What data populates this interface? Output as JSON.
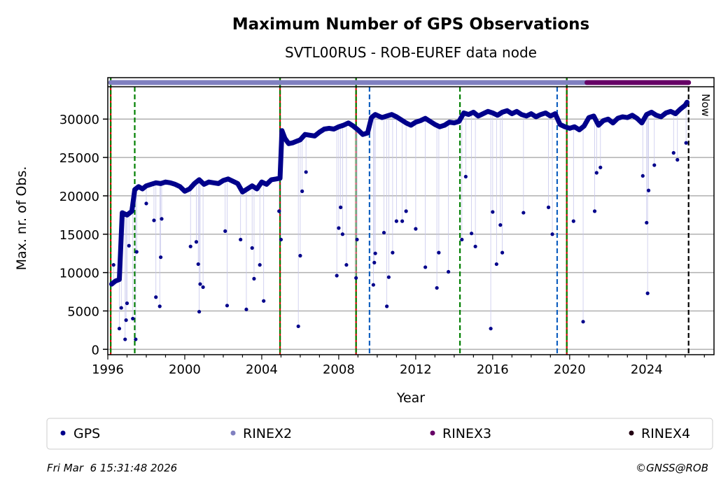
{
  "chart_data": {
    "type": "scatter",
    "title": "Maximum Number of GPS Observations",
    "subtitle": "SVTL00RUS - ROB-EUREF data node",
    "xlabel": "Year",
    "ylabel": "Max. nr. of Obs.",
    "xlim": [
      1996,
      2027.5
    ],
    "ylim": [
      -700,
      35400
    ],
    "xticks": [
      "1996",
      "2000",
      "2004",
      "2008",
      "2012",
      "2016",
      "2020",
      "2024"
    ],
    "yticks": [
      "0",
      "5000",
      "10000",
      "15000",
      "20000",
      "25000",
      "30000"
    ],
    "grid": "horizontal",
    "now_label": "Now",
    "now_year": 2026.18,
    "colors": {
      "gps": "#00008b",
      "rinex2": "#8080c0",
      "rinex3": "#660066",
      "rinex4": "#220011"
    },
    "rinex_periods": [
      {
        "name": "RINEX2",
        "from": 1996.15,
        "to": 2020.9
      },
      {
        "name": "RINEX3",
        "from": 2020.9,
        "to": 2026.18
      }
    ],
    "event_lines": [
      {
        "year": 1996.15,
        "style": "red-green"
      },
      {
        "year": 1997.4,
        "style": "green"
      },
      {
        "year": 2004.95,
        "style": "red-green"
      },
      {
        "year": 2008.9,
        "style": "red-green"
      },
      {
        "year": 2009.6,
        "style": "blue"
      },
      {
        "year": 2014.3,
        "style": "green"
      },
      {
        "year": 2019.35,
        "style": "blue"
      },
      {
        "year": 2019.85,
        "style": "red-green"
      }
    ],
    "series": [
      {
        "name": "GPS",
        "points": [
          [
            1996.2,
            8500
          ],
          [
            1996.4,
            8900
          ],
          [
            1996.6,
            9100
          ],
          [
            1996.75,
            17800
          ],
          [
            1997.0,
            17500
          ],
          [
            1997.25,
            18000
          ],
          [
            1997.4,
            20800
          ],
          [
            1997.6,
            21200
          ],
          [
            1997.8,
            20900
          ],
          [
            1998.0,
            21300
          ],
          [
            1998.25,
            21500
          ],
          [
            1998.5,
            21700
          ],
          [
            1998.75,
            21600
          ],
          [
            1999.0,
            21800
          ],
          [
            1999.25,
            21700
          ],
          [
            1999.5,
            21500
          ],
          [
            1999.75,
            21200
          ],
          [
            2000.0,
            20600
          ],
          [
            2000.25,
            20900
          ],
          [
            2000.5,
            21600
          ],
          [
            2000.75,
            22100
          ],
          [
            2001.0,
            21500
          ],
          [
            2001.25,
            21800
          ],
          [
            2001.5,
            21700
          ],
          [
            2001.75,
            21600
          ],
          [
            2002.0,
            22000
          ],
          [
            2002.25,
            22200
          ],
          [
            2002.5,
            21900
          ],
          [
            2002.75,
            21600
          ],
          [
            2003.0,
            20500
          ],
          [
            2003.25,
            20900
          ],
          [
            2003.5,
            21300
          ],
          [
            2003.75,
            20900
          ],
          [
            2004.0,
            21800
          ],
          [
            2004.25,
            21500
          ],
          [
            2004.5,
            22100
          ],
          [
            2004.75,
            22200
          ],
          [
            2004.95,
            22300
          ],
          [
            2005.05,
            28500
          ],
          [
            2005.2,
            27500
          ],
          [
            2005.4,
            26800
          ],
          [
            2005.6,
            26900
          ],
          [
            2005.8,
            27100
          ],
          [
            2006.0,
            27300
          ],
          [
            2006.25,
            28000
          ],
          [
            2006.5,
            27900
          ],
          [
            2006.75,
            27800
          ],
          [
            2007.0,
            28300
          ],
          [
            2007.25,
            28700
          ],
          [
            2007.5,
            28800
          ],
          [
            2007.75,
            28700
          ],
          [
            2008.0,
            29000
          ],
          [
            2008.25,
            29200
          ],
          [
            2008.5,
            29500
          ],
          [
            2008.75,
            29100
          ],
          [
            2009.0,
            28600
          ],
          [
            2009.25,
            28000
          ],
          [
            2009.5,
            28200
          ],
          [
            2009.7,
            30200
          ],
          [
            2009.9,
            30600
          ],
          [
            2010.25,
            30200
          ],
          [
            2010.5,
            30400
          ],
          [
            2010.75,
            30600
          ],
          [
            2011.0,
            30300
          ],
          [
            2011.25,
            29900
          ],
          [
            2011.5,
            29500
          ],
          [
            2011.75,
            29200
          ],
          [
            2012.0,
            29600
          ],
          [
            2012.25,
            29800
          ],
          [
            2012.5,
            30100
          ],
          [
            2012.75,
            29700
          ],
          [
            2013.0,
            29300
          ],
          [
            2013.25,
            29000
          ],
          [
            2013.5,
            29200
          ],
          [
            2013.75,
            29600
          ],
          [
            2014.0,
            29500
          ],
          [
            2014.25,
            29700
          ],
          [
            2014.5,
            30800
          ],
          [
            2014.75,
            30600
          ],
          [
            2015.0,
            30900
          ],
          [
            2015.25,
            30400
          ],
          [
            2015.5,
            30700
          ],
          [
            2015.75,
            31000
          ],
          [
            2016.0,
            30800
          ],
          [
            2016.25,
            30500
          ],
          [
            2016.5,
            30900
          ],
          [
            2016.75,
            31100
          ],
          [
            2017.0,
            30700
          ],
          [
            2017.25,
            31000
          ],
          [
            2017.5,
            30600
          ],
          [
            2017.75,
            30400
          ],
          [
            2018.0,
            30700
          ],
          [
            2018.25,
            30300
          ],
          [
            2018.5,
            30600
          ],
          [
            2018.75,
            30800
          ],
          [
            2019.0,
            30400
          ],
          [
            2019.25,
            30700
          ],
          [
            2019.5,
            29300
          ],
          [
            2019.75,
            29000
          ],
          [
            2020.0,
            28800
          ],
          [
            2020.25,
            29000
          ],
          [
            2020.5,
            28600
          ],
          [
            2020.75,
            29100
          ],
          [
            2021.0,
            30200
          ],
          [
            2021.25,
            30400
          ],
          [
            2021.5,
            29200
          ],
          [
            2021.75,
            29800
          ],
          [
            2022.0,
            30000
          ],
          [
            2022.25,
            29500
          ],
          [
            2022.5,
            30100
          ],
          [
            2022.75,
            30300
          ],
          [
            2023.0,
            30200
          ],
          [
            2023.25,
            30500
          ],
          [
            2023.5,
            30100
          ],
          [
            2023.75,
            29500
          ],
          [
            2024.0,
            30600
          ],
          [
            2024.25,
            30900
          ],
          [
            2024.5,
            30500
          ],
          [
            2024.75,
            30300
          ],
          [
            2025.0,
            30800
          ],
          [
            2025.25,
            31000
          ],
          [
            2025.5,
            30700
          ],
          [
            2025.75,
            31300
          ],
          [
            2026.0,
            31800
          ],
          [
            2026.1,
            32200
          ]
        ],
        "outliers": [
          [
            1996.3,
            11000
          ],
          [
            1996.6,
            2700
          ],
          [
            1996.7,
            5400
          ],
          [
            1996.9,
            1300
          ],
          [
            1996.95,
            3800
          ],
          [
            1997.0,
            6000
          ],
          [
            1997.1,
            13500
          ],
          [
            1997.3,
            4000
          ],
          [
            1997.45,
            1300
          ],
          [
            1997.5,
            12700
          ],
          [
            1998.0,
            19000
          ],
          [
            1998.4,
            16800
          ],
          [
            1998.5,
            6800
          ],
          [
            1998.7,
            5600
          ],
          [
            1998.75,
            12000
          ],
          [
            1998.8,
            17000
          ],
          [
            2000.3,
            13400
          ],
          [
            2000.6,
            14000
          ],
          [
            2000.7,
            11100
          ],
          [
            2000.8,
            8500
          ],
          [
            2000.75,
            4900
          ],
          [
            2000.95,
            8100
          ],
          [
            2002.1,
            15400
          ],
          [
            2002.2,
            5700
          ],
          [
            2002.9,
            14300
          ],
          [
            2003.2,
            5200
          ],
          [
            2003.5,
            13200
          ],
          [
            2003.6,
            9200
          ],
          [
            2003.9,
            11000
          ],
          [
            2004.1,
            6300
          ],
          [
            2004.9,
            18000
          ],
          [
            2005.0,
            14300
          ],
          [
            2005.9,
            3000
          ],
          [
            2006.0,
            12200
          ],
          [
            2006.1,
            20600
          ],
          [
            2006.3,
            23100
          ],
          [
            2007.9,
            9600
          ],
          [
            2008.0,
            15800
          ],
          [
            2008.1,
            18500
          ],
          [
            2008.2,
            15000
          ],
          [
            2008.4,
            11000
          ],
          [
            2008.9,
            9300
          ],
          [
            2008.95,
            14300
          ],
          [
            2009.8,
            8400
          ],
          [
            2009.85,
            11300
          ],
          [
            2009.9,
            12500
          ],
          [
            2010.35,
            15200
          ],
          [
            2010.5,
            5600
          ],
          [
            2010.6,
            9400
          ],
          [
            2010.8,
            12600
          ],
          [
            2011.0,
            16700
          ],
          [
            2011.3,
            16700
          ],
          [
            2011.5,
            18000
          ],
          [
            2012.0,
            15700
          ],
          [
            2012.5,
            10700
          ],
          [
            2013.1,
            8000
          ],
          [
            2013.2,
            12600
          ],
          [
            2013.7,
            10100
          ],
          [
            2014.4,
            14300
          ],
          [
            2014.6,
            22500
          ],
          [
            2014.9,
            15100
          ],
          [
            2015.1,
            13400
          ],
          [
            2015.9,
            2700
          ],
          [
            2016.0,
            17900
          ],
          [
            2016.2,
            11100
          ],
          [
            2016.4,
            16200
          ],
          [
            2016.5,
            12600
          ],
          [
            2017.6,
            17800
          ],
          [
            2018.9,
            18500
          ],
          [
            2019.1,
            15000
          ],
          [
            2020.2,
            16700
          ],
          [
            2020.7,
            3600
          ],
          [
            2021.3,
            18000
          ],
          [
            2021.4,
            23000
          ],
          [
            2021.6,
            23700
          ],
          [
            2023.8,
            22600
          ],
          [
            2024.0,
            16500
          ],
          [
            2024.05,
            7300
          ],
          [
            2024.1,
            20700
          ],
          [
            2024.4,
            24000
          ],
          [
            2025.4,
            25600
          ],
          [
            2025.6,
            24700
          ],
          [
            2026.05,
            26900
          ]
        ]
      }
    ],
    "legend": {
      "placement": "bottom",
      "entries": [
        "GPS",
        "RINEX2",
        "RINEX3",
        "RINEX4"
      ]
    }
  },
  "footer": {
    "timestamp": "Fri Mar  6 15:31:48 2026",
    "copyright": "©GNSS@ROB"
  }
}
